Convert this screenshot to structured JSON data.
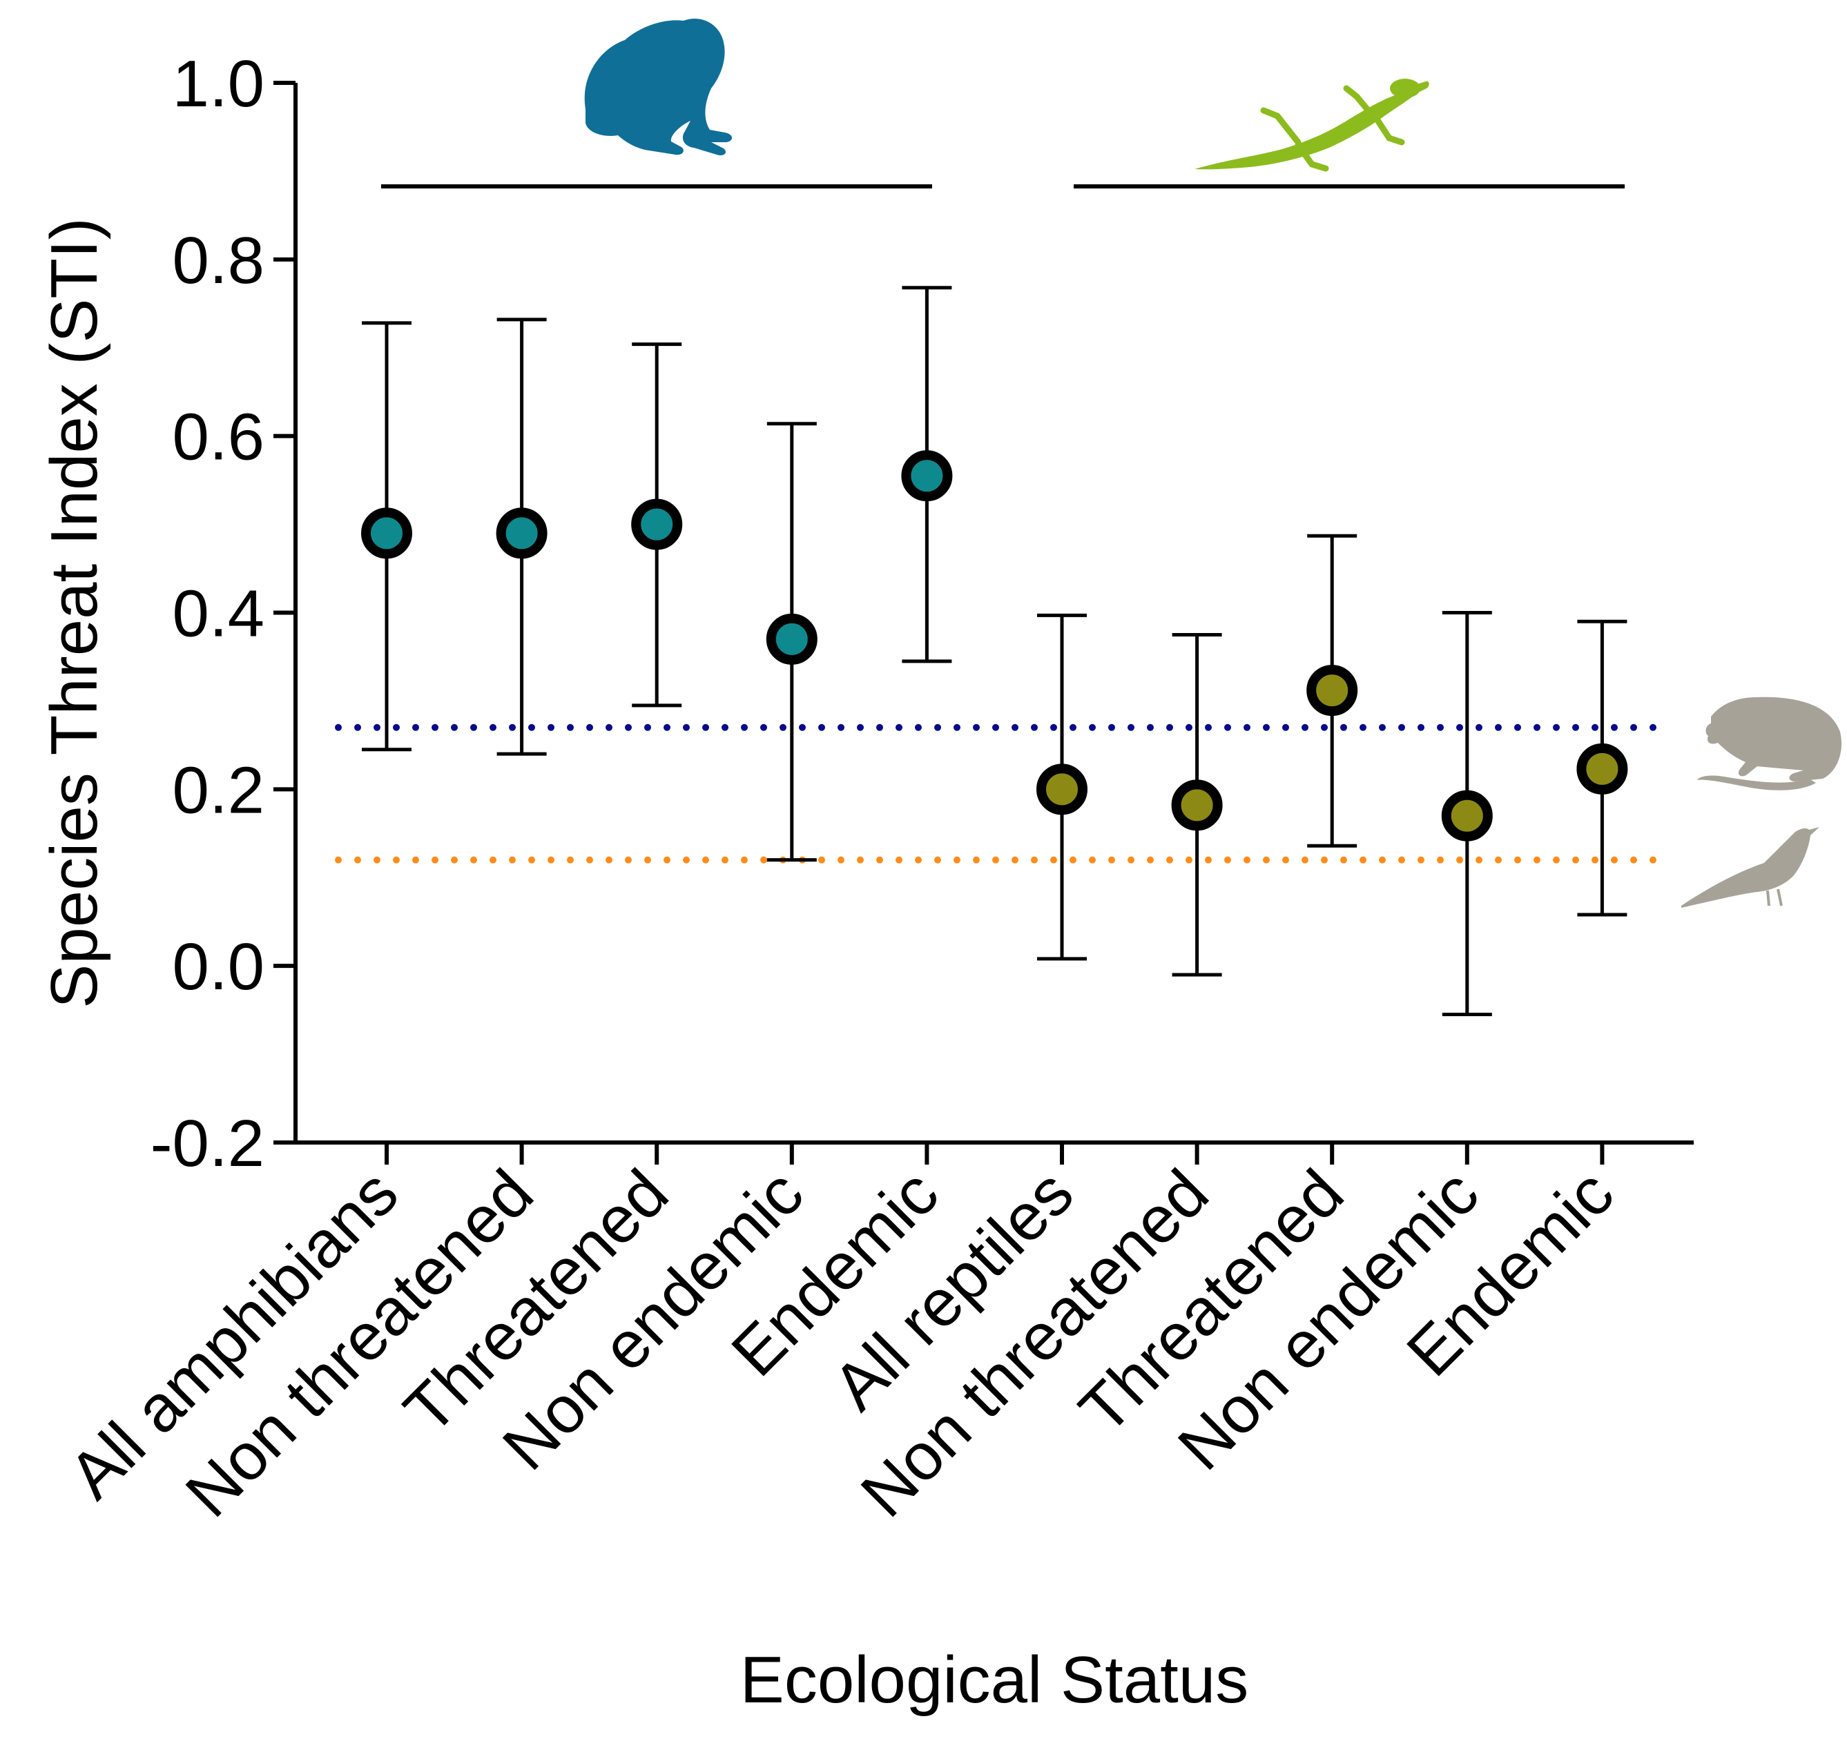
{
  "chart_data": {
    "type": "scatter",
    "title": "",
    "xlabel": "Ecological Status",
    "ylabel": "Species Threat Index (STI)",
    "ylim": [
      -0.2,
      1.0
    ],
    "yticks": [
      "1.0",
      "0.8",
      "0.6",
      "0.4",
      "0.2",
      "0.0",
      "-0.2"
    ],
    "ytick_values": [
      1.0,
      0.8,
      0.6,
      0.4,
      0.2,
      0.0,
      -0.2
    ],
    "categories": [
      "All amphibians",
      "Non threatened",
      "Threatened",
      "Non endemic",
      "Endemic",
      "All reptiles",
      "Non threatened",
      "Threatened",
      "Non endemic",
      "Endemic"
    ],
    "series": [
      {
        "name": "Amphibians",
        "color": "#0e8a8f",
        "icon": "frog-icon",
        "icon_color": "#0f6f97",
        "category_index": [
          0,
          1,
          2,
          3,
          4
        ],
        "values": [
          0.49,
          0.49,
          0.5,
          0.37,
          0.555
        ],
        "lower": [
          0.245,
          0.24,
          0.295,
          0.12,
          0.345
        ],
        "upper": [
          0.728,
          0.732,
          0.704,
          0.614,
          0.768
        ]
      },
      {
        "name": "Reptiles",
        "color": "#8c8a14",
        "icon": "lizard-icon",
        "icon_color": "#8cbb1d",
        "category_index": [
          5,
          6,
          7,
          8,
          9
        ],
        "values": [
          0.2,
          0.182,
          0.312,
          0.17,
          0.223
        ],
        "lower": [
          0.008,
          -0.01,
          0.136,
          -0.055,
          0.058
        ],
        "upper": [
          0.397,
          0.375,
          0.487,
          0.4,
          0.39
        ]
      }
    ],
    "reference_lines": [
      {
        "name": "Mammals",
        "value": 0.27,
        "color": "#0a0a8a",
        "style": "dotted",
        "icon": "mammal-icon",
        "icon_color": "#a6a298"
      },
      {
        "name": "Birds",
        "value": 0.12,
        "color": "#ff8c1a",
        "style": "dotted",
        "icon": "bird-icon",
        "icon_color": "#a6a298"
      }
    ],
    "grid": false
  }
}
